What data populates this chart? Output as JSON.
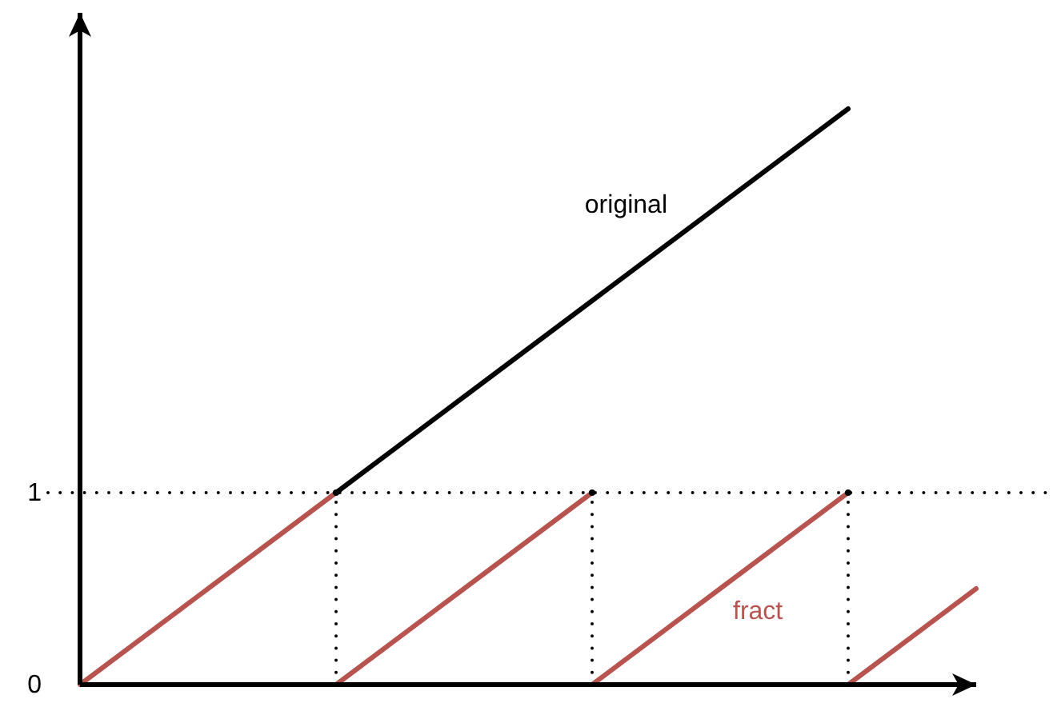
{
  "chart_data": {
    "type": "line",
    "categories": [
      null,
      null,
      null,
      null,
      null,
      null,
      null,
      null
    ],
    "ylim": [
      0,
      3.5
    ],
    "yticks": [
      0,
      1
    ],
    "tick_labels": "y",
    "series": [
      {
        "name": "original",
        "color": "#000000",
        "values": [
          null,
          null,
          1,
          1.5,
          2,
          2.5,
          3,
          null
        ]
      },
      {
        "color": "#b85450",
        "values": [
          0,
          0.5,
          1,
          null,
          null,
          null,
          null,
          null
        ]
      },
      {
        "color": "#b85450",
        "values": [
          null,
          null,
          0,
          0.5,
          1,
          null,
          null,
          null
        ]
      },
      {
        "name": "fract",
        "color": "#b85450",
        "values": [
          null,
          null,
          null,
          null,
          0,
          0.5,
          1,
          null
        ]
      },
      {
        "color": "#b85450",
        "values": [
          null,
          null,
          null,
          null,
          null,
          null,
          0,
          0.5
        ]
      },
      {
        "type": "lollipop",
        "color": "#000000",
        "line_style": "dotted",
        "marker": "circle",
        "values": [
          null,
          null,
          1,
          null,
          1,
          null,
          1,
          null
        ]
      }
    ],
    "ref_lines": [
      {
        "axis": "y",
        "value": 1,
        "color": "#000000",
        "line_style": "dotted"
      }
    ]
  }
}
